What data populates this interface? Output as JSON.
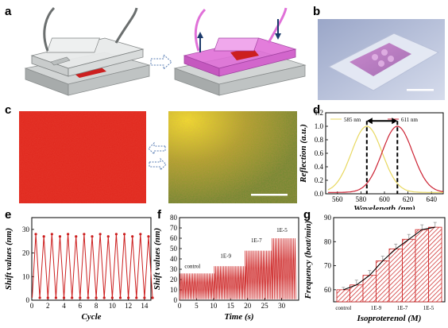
{
  "panels": {
    "a": "a",
    "b": "b",
    "c": "c",
    "d": "d",
    "e": "e",
    "f": "f",
    "g": "g"
  },
  "colors": {
    "red": "#cc1f1f",
    "pink": "#e070d8",
    "yellow_curve": "#e8d860",
    "gray": "#b9bdbd"
  },
  "chart_data": [
    {
      "id": "d",
      "type": "line",
      "xlabel": "Wavelength (nm)",
      "ylabel": "Reflection (a.u.)",
      "xlim": [
        550,
        650
      ],
      "ylim": [
        0,
        1.2
      ],
      "xticks": [
        "560",
        "580",
        "600",
        "620",
        "640"
      ],
      "yticks": [
        "0.0",
        "0.2",
        "0.4",
        "0.6",
        "0.8",
        "1.0",
        "1.2"
      ],
      "series": [
        {
          "name": "585 nm",
          "peak": 585,
          "color": "#e8d860"
        },
        {
          "name": "611 nm",
          "peak": 611,
          "color": "#cc2233"
        }
      ]
    },
    {
      "id": "e",
      "type": "line",
      "xlabel": "Cycle",
      "ylabel": "Shift values (nm)",
      "xlim": [
        0,
        14.8
      ],
      "ylim": [
        0,
        35
      ],
      "xticks": [
        "0",
        "2",
        "4",
        "6",
        "8",
        "10",
        "12",
        "14"
      ],
      "yticks": [
        "0",
        "10",
        "20",
        "30"
      ],
      "peaks": [
        28,
        27,
        28,
        27,
        28,
        27,
        28,
        27,
        28,
        27,
        28,
        28,
        27,
        28,
        27
      ],
      "troughs": [
        1,
        1,
        1,
        1,
        1,
        1,
        1,
        1,
        1,
        1,
        1,
        1,
        1,
        1,
        1
      ]
    },
    {
      "id": "f",
      "type": "line",
      "xlabel": "Time (s)",
      "ylabel": "Shift values (nm)",
      "xlim": [
        0,
        35
      ],
      "ylim": [
        0,
        80
      ],
      "xticks": [
        "0",
        "5",
        "10",
        "15",
        "20",
        "25",
        "30"
      ],
      "yticks": [
        "0",
        "10",
        "20",
        "30",
        "40",
        "50",
        "60",
        "70",
        "80"
      ],
      "annotations": [
        "control",
        "1E-9",
        "1E-7",
        "1E-5"
      ],
      "segments": [
        {
          "from": 0,
          "to": 10,
          "amp": 26
        },
        {
          "from": 10,
          "to": 19,
          "amp": 33
        },
        {
          "from": 19,
          "to": 27,
          "amp": 48
        },
        {
          "from": 27,
          "to": 34,
          "amp": 60
        }
      ]
    },
    {
      "id": "g",
      "type": "bar",
      "xlabel": "Isoproterenol (M)",
      "ylabel": "Frequency (beat/min)",
      "ylim": [
        55,
        90
      ],
      "yticks": [
        "60",
        "70",
        "80",
        "90"
      ],
      "xticks": [
        "control",
        "1E-9",
        "1E-7",
        "1E-5"
      ],
      "values": [
        60,
        62,
        66,
        72,
        77,
        81,
        85,
        86
      ],
      "errors": [
        1,
        2,
        2,
        2,
        2,
        2,
        2,
        2
      ]
    }
  ]
}
